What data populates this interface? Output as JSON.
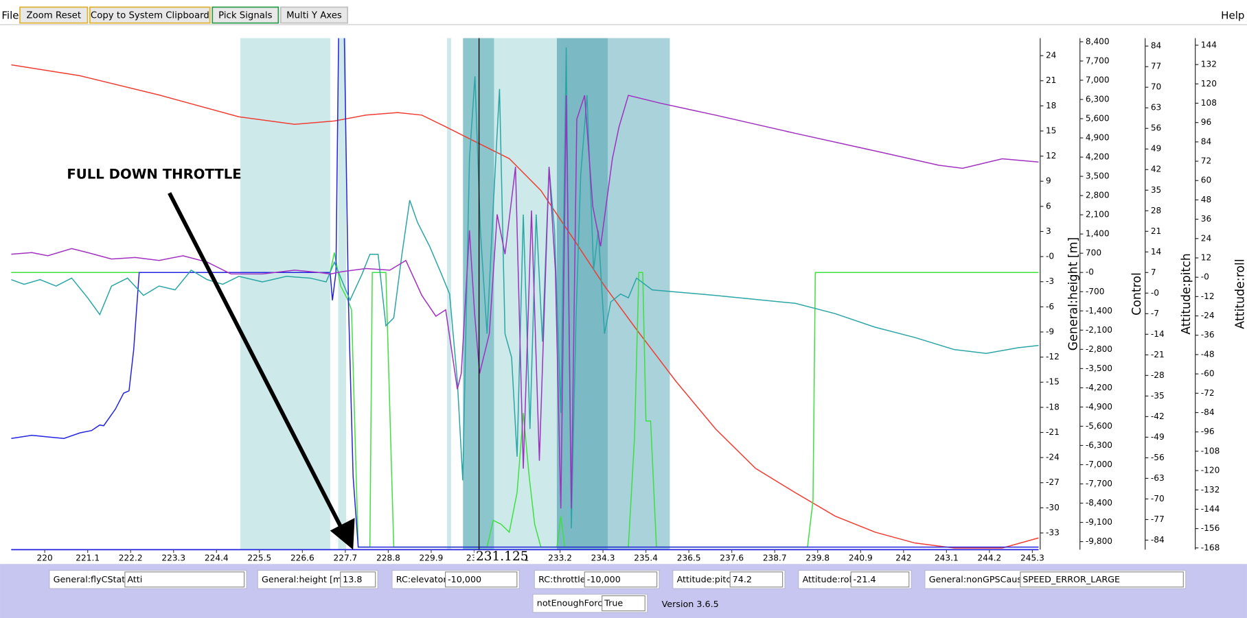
{
  "menu": {
    "file": "File",
    "help": "Help"
  },
  "toolbar": [
    "Zoom Reset",
    "Copy to System Clipboard",
    "Pick Signals",
    "Multi Y Axes"
  ],
  "chart_data": {
    "type": "line",
    "annotation": "FULL DOWN THROTTLE",
    "cursor": 231.125,
    "xlim": [
      219.14,
      245.46
    ],
    "xticks": [
      220,
      221.1,
      222.2,
      223.3,
      224.4,
      225.5,
      226.6,
      227.7,
      228.8,
      229.9,
      231,
      232.1,
      233.2,
      234.3,
      235.4,
      236.5,
      237.6,
      238.7,
      239.8,
      240.9,
      242,
      243.1,
      244.2,
      245.3
    ],
    "bands": [
      {
        "x": [
          225.011,
          227.313
        ],
        "color": "#cde9ea"
      },
      {
        "x": [
          227.517,
          227.72
        ],
        "color": "#cde9ea"
      },
      {
        "x": [
          230.307,
          230.409
        ],
        "color": "#cde9ea"
      },
      {
        "x": [
          230.715,
          236.011
        ],
        "color": "#cde9ea"
      },
      {
        "x": [
          230.715,
          231.509
        ],
        "color": "#8cc5cc"
      },
      {
        "x": [
          233.119,
          234.422
        ],
        "color": "#7bbac4"
      },
      {
        "x": [
          234.422,
          236.011
        ],
        "color": "#a9d2db"
      }
    ],
    "axes": [
      {
        "id": "height",
        "label": "General:height [m]",
        "color": "#e8201a",
        "ylim": [
          -35.0,
          26.09
        ],
        "yticks": [
          24,
          21,
          18,
          15,
          12,
          9,
          6,
          3,
          {
            "value": 0,
            "label": "-0"
          },
          -3,
          -6,
          -9,
          -12,
          -15,
          -18,
          -21,
          -24,
          -27,
          -30,
          -33
        ]
      },
      {
        "id": "control",
        "label": "Control",
        "color": "#000000",
        "ylim": [
          -10095,
          8533
        ],
        "yticks": [
          {
            "value": 8400,
            "label": "8,400"
          },
          {
            "value": 7700,
            "label": "7,700"
          },
          {
            "value": 7000,
            "label": "7,000"
          },
          {
            "value": 6300,
            "label": "6,300"
          },
          {
            "value": 5600,
            "label": "5,600"
          },
          {
            "value": 4900,
            "label": "4,900"
          },
          {
            "value": 4200,
            "label": "4,200"
          },
          {
            "value": 3500,
            "label": "3,500"
          },
          {
            "value": 2800,
            "label": "2,800"
          },
          {
            "value": 2100,
            "label": "2,100"
          },
          {
            "value": 1400,
            "label": "1,400"
          },
          700,
          {
            "value": 0,
            "label": "-0"
          },
          -700,
          {
            "value": -1400,
            "label": "-1,400"
          },
          {
            "value": -2100,
            "label": "-2,100"
          },
          {
            "value": -2800,
            "label": "-2,800"
          },
          {
            "value": -3500,
            "label": "-3,500"
          },
          {
            "value": -4200,
            "label": "-4,200"
          },
          {
            "value": -4900,
            "label": "-4,900"
          },
          {
            "value": -5600,
            "label": "-5,600"
          },
          {
            "value": -6300,
            "label": "-6,300"
          },
          {
            "value": -7000,
            "label": "-7,000"
          },
          {
            "value": -7700,
            "label": "-7,700"
          },
          {
            "value": -8400,
            "label": "-8,400"
          },
          {
            "value": -9100,
            "label": "-9,100"
          },
          {
            "value": -9800,
            "label": "-9,800"
          }
        ]
      },
      {
        "id": "pitch",
        "label": "Attitude:pitch",
        "color": "#1a9a9a",
        "ylim": [
          -87.25,
          86.7
        ],
        "yticks": [
          84,
          77,
          70,
          63,
          56,
          49,
          42,
          35,
          28,
          21,
          14,
          7,
          {
            "value": 0,
            "label": "-0"
          },
          -7,
          -14,
          -21,
          -28,
          -35,
          -42,
          -49,
          -56,
          -63,
          -70,
          -77,
          -84
        ]
      },
      {
        "id": "roll",
        "label": "Attitude:roll",
        "color": "#9a1aaa",
        "ylim": [
          -169.1,
          148.4
        ],
        "yticks": [
          144,
          132,
          120,
          108,
          96,
          84,
          72,
          60,
          48,
          36,
          24,
          12,
          {
            "value": 0,
            "label": "-0"
          },
          -12,
          -24,
          -36,
          -48,
          -60,
          -72,
          -84,
          -96,
          -108,
          -120,
          -132,
          -144,
          -156,
          -168
        ]
      }
    ],
    "series": [
      {
        "name": "General:height [m]",
        "color": "#f03c32",
        "axis": "height",
        "readout": "13.8",
        "x": [
          219.14,
          220.9,
          222.93,
          224.97,
          226.4,
          227.42,
          228.23,
          229.04,
          229.66,
          230.27,
          231.0,
          231.9,
          232.71,
          233.53,
          234.34,
          235.16,
          236.17,
          237.19,
          238.21,
          239.23,
          240.25,
          241.27,
          242.29,
          243.3,
          244.53,
          245.46
        ],
        "values": [
          22.9,
          21.6,
          19.3,
          16.7,
          15.8,
          16.2,
          16.9,
          17.2,
          16.9,
          15.5,
          13.8,
          11.7,
          7.9,
          2.2,
          -3.5,
          -8.7,
          -14.9,
          -20.6,
          -25.3,
          -28.2,
          -31.0,
          -32.9,
          -34.2,
          -34.8,
          -34.8,
          -33.6
        ]
      },
      {
        "name": "RC:elevator",
        "color": "#3ee03e",
        "axis": "control",
        "readout": "-10,000",
        "x": [
          219.14,
          227.31,
          227.42,
          227.58,
          227.74,
          227.86,
          228.03,
          228.33,
          228.39,
          228.74,
          228.94,
          231.33,
          231.49,
          231.69,
          231.9,
          232.1,
          232.26,
          232.41,
          232.55,
          232.71,
          233.12,
          233.22,
          233.32,
          234.95,
          235.11,
          235.22,
          235.32,
          235.4,
          235.52,
          235.67,
          239.54,
          239.68,
          239.74,
          245.46
        ],
        "values": [
          0,
          0,
          723,
          -492,
          -926,
          -1360,
          -10000,
          -10000,
          0,
          0,
          -10000,
          -10000,
          -9025,
          -9170,
          -9459,
          -8013,
          -5120,
          -7434,
          -9170,
          -10000,
          -10000,
          -8881,
          -10000,
          -10000,
          -5988,
          0,
          0,
          -5409,
          -5409,
          -10000,
          -10000,
          -8302,
          0,
          0
        ]
      },
      {
        "name": "RC:throttle",
        "color": "#2222e0",
        "axis": "control",
        "readout": "-10,000",
        "x": [
          219.14,
          219.67,
          220.08,
          220.49,
          220.9,
          221.2,
          221.41,
          221.51,
          221.81,
          222.02,
          222.16,
          222.28,
          222.42,
          227.31,
          227.37,
          227.46,
          227.54,
          227.66,
          227.78,
          227.9,
          228.03,
          245.46
        ],
        "values": [
          -6046,
          -5930,
          -5988,
          -6046,
          -5843,
          -5756,
          -5554,
          -5583,
          -4975,
          -4397,
          -4310,
          -2806,
          0,
          0,
          -1012,
          0,
          10000,
          10000,
          -1070,
          -7434,
          -10000,
          -10000
        ]
      },
      {
        "name": "Attitude:pitch",
        "color": "#2aa5a5",
        "axis": "pitch",
        "readout": "74.2",
        "x": [
          219.14,
          219.47,
          219.88,
          220.29,
          220.69,
          221.1,
          221.41,
          221.71,
          222.12,
          222.53,
          222.93,
          223.34,
          223.75,
          224.16,
          224.56,
          224.97,
          225.58,
          226.19,
          226.8,
          227.21,
          227.42,
          227.82,
          228.13,
          228.33,
          228.54,
          228.74,
          228.94,
          229.15,
          229.35,
          229.55,
          229.86,
          230.16,
          230.37,
          230.57,
          230.71,
          230.88,
          231.02,
          231.16,
          231.33,
          231.49,
          231.65,
          231.79,
          231.96,
          232.1,
          232.26,
          232.43,
          232.59,
          232.75,
          232.92,
          233.06,
          233.22,
          233.36,
          233.49,
          233.61,
          233.73,
          233.89,
          234.06,
          234.18,
          234.34,
          234.5,
          234.75,
          234.95,
          235.16,
          235.56,
          237.19,
          239.23,
          240.25,
          241.27,
          242.29,
          243.3,
          244.12,
          244.93,
          245.46
        ],
        "values": [
          4.6,
          3.0,
          4.6,
          2.4,
          5.1,
          -1.6,
          -7.3,
          2.4,
          5.1,
          -0.8,
          2.4,
          1.1,
          7.8,
          4.6,
          3.0,
          5.7,
          3.8,
          5.7,
          5.1,
          3.8,
          10.5,
          -2.4,
          6.5,
          13.2,
          13.2,
          -11.1,
          -8.4,
          13.2,
          31.6,
          24.0,
          15.9,
          6.5,
          -0.3,
          -30.0,
          -63.7,
          45.7,
          73.7,
          21.3,
          -13.8,
          29.4,
          69.4,
          -13.8,
          -21.9,
          -55.6,
          26.7,
          -46.2,
          26.7,
          -16.5,
          42.9,
          21.3,
          -40.8,
          83.5,
          -80.0,
          -8.4,
          40.2,
          67.3,
          7.8,
          21.3,
          -13.8,
          -3.0,
          -0.3,
          -1.6,
          5.1,
          1.1,
          -0.8,
          -3.5,
          -7.0,
          -11.6,
          -15.1,
          -19.2,
          -20.5,
          -18.6,
          -17.8
        ]
      },
      {
        "name": "Attitude:roll",
        "color": "#a030c0",
        "axis": "roll",
        "readout": "-21.4",
        "x": [
          219.14,
          219.67,
          220.08,
          220.69,
          221.1,
          221.71,
          222.32,
          222.93,
          223.54,
          224.16,
          224.77,
          225.58,
          226.4,
          227.01,
          227.31,
          227.62,
          228.23,
          228.84,
          229.25,
          229.66,
          230.02,
          230.27,
          230.57,
          230.67,
          230.88,
          231.01,
          231.14,
          231.39,
          231.59,
          231.79,
          232.06,
          232.26,
          232.47,
          232.67,
          232.92,
          233.08,
          233.22,
          233.36,
          233.49,
          233.63,
          233.83,
          234.04,
          234.24,
          234.54,
          234.71,
          234.95,
          235.77,
          237.19,
          239.23,
          241.27,
          242.9,
          243.51,
          244.53,
          245.46
        ],
        "values": [
          14.3,
          15.3,
          13.3,
          17.8,
          15.3,
          11.3,
          12.3,
          10.4,
          13.3,
          9.4,
          2.0,
          2.0,
          4.4,
          3.0,
          2.0,
          3.5,
          5.4,
          4.4,
          10.4,
          -11.3,
          -24.2,
          -20.2,
          -69.5,
          -59.7,
          29.1,
          -22.2,
          -59.7,
          -35.0,
          39.0,
          14.3,
          68.5,
          -118.8,
          41.4,
          -113.9,
          68.5,
          4.4,
          -143.5,
          112.9,
          -143.5,
          98.1,
          112.9,
          43.9,
          19.2,
          73.5,
          93.2,
          112.9,
          108.0,
          100.6,
          89.3,
          78.4,
          69.5,
          67.6,
          73.5,
          71.5
        ]
      }
    ]
  },
  "fields": [
    {
      "label": "General:flyCState",
      "value": "Atti"
    },
    {
      "label": "General:nonGPSCause",
      "value": "SPEED_ERROR_LARGE"
    },
    {
      "label": "notEnoughForce",
      "value": "True"
    }
  ],
  "version": "Version 3.6.5"
}
